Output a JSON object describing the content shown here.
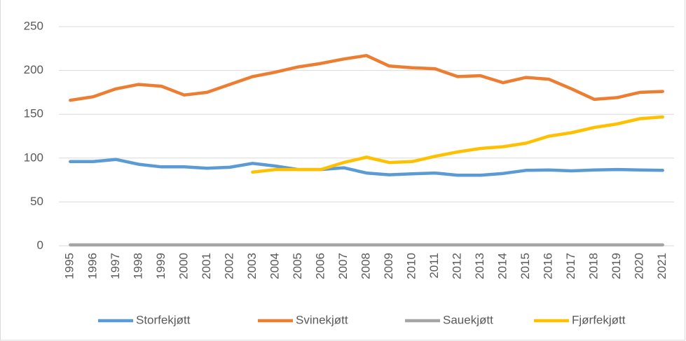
{
  "chart_data": {
    "type": "line",
    "categories": [
      "1995",
      "1996",
      "1997",
      "1998",
      "1999",
      "2000",
      "2001",
      "2002",
      "2003",
      "2004",
      "2005",
      "2006",
      "2007",
      "2008",
      "2009",
      "2010",
      "2011",
      "2012",
      "2013",
      "2014",
      "2015",
      "2016",
      "2017",
      "2018",
      "2019",
      "2020",
      "2021"
    ],
    "series": [
      {
        "name": "Storfekjøtt",
        "color": "#5b9bd5",
        "values": [
          96,
          96,
          98.5,
          93,
          90,
          90,
          88.5,
          89.5,
          94,
          91,
          87,
          87,
          89,
          83,
          81,
          82,
          83,
          80.5,
          80.5,
          82.5,
          86,
          86.5,
          85.5,
          86.5,
          87,
          86.5,
          86
        ]
      },
      {
        "name": "Svinekjøtt",
        "color": "#ed7d31",
        "values": [
          166,
          170,
          179,
          184,
          182,
          172,
          175,
          184,
          193,
          198,
          204,
          208,
          213,
          217,
          205,
          203,
          202,
          193,
          194,
          186,
          192,
          190,
          179,
          167,
          169,
          175,
          176
        ]
      },
      {
        "name": "Sauekjøtt",
        "color": "#a5a5a5",
        "values": [
          1,
          1,
          1,
          1,
          1,
          1,
          1,
          1,
          1,
          1,
          1,
          1,
          1,
          1,
          1,
          1,
          1,
          1,
          1,
          1,
          1,
          1,
          1,
          1,
          1,
          1,
          1
        ]
      },
      {
        "name": "Fjørfekjøtt",
        "color": "#ffc000",
        "values": [
          null,
          null,
          null,
          null,
          null,
          null,
          null,
          null,
          84,
          87,
          87,
          87,
          95,
          101,
          95,
          96,
          102,
          107,
          111,
          113,
          117,
          125,
          129,
          135,
          139,
          145,
          147
        ]
      }
    ],
    "ylim": [
      0,
      250
    ],
    "yticks": [
      0,
      50,
      100,
      150,
      200,
      250
    ],
    "grid": true,
    "legend": "bottom"
  }
}
